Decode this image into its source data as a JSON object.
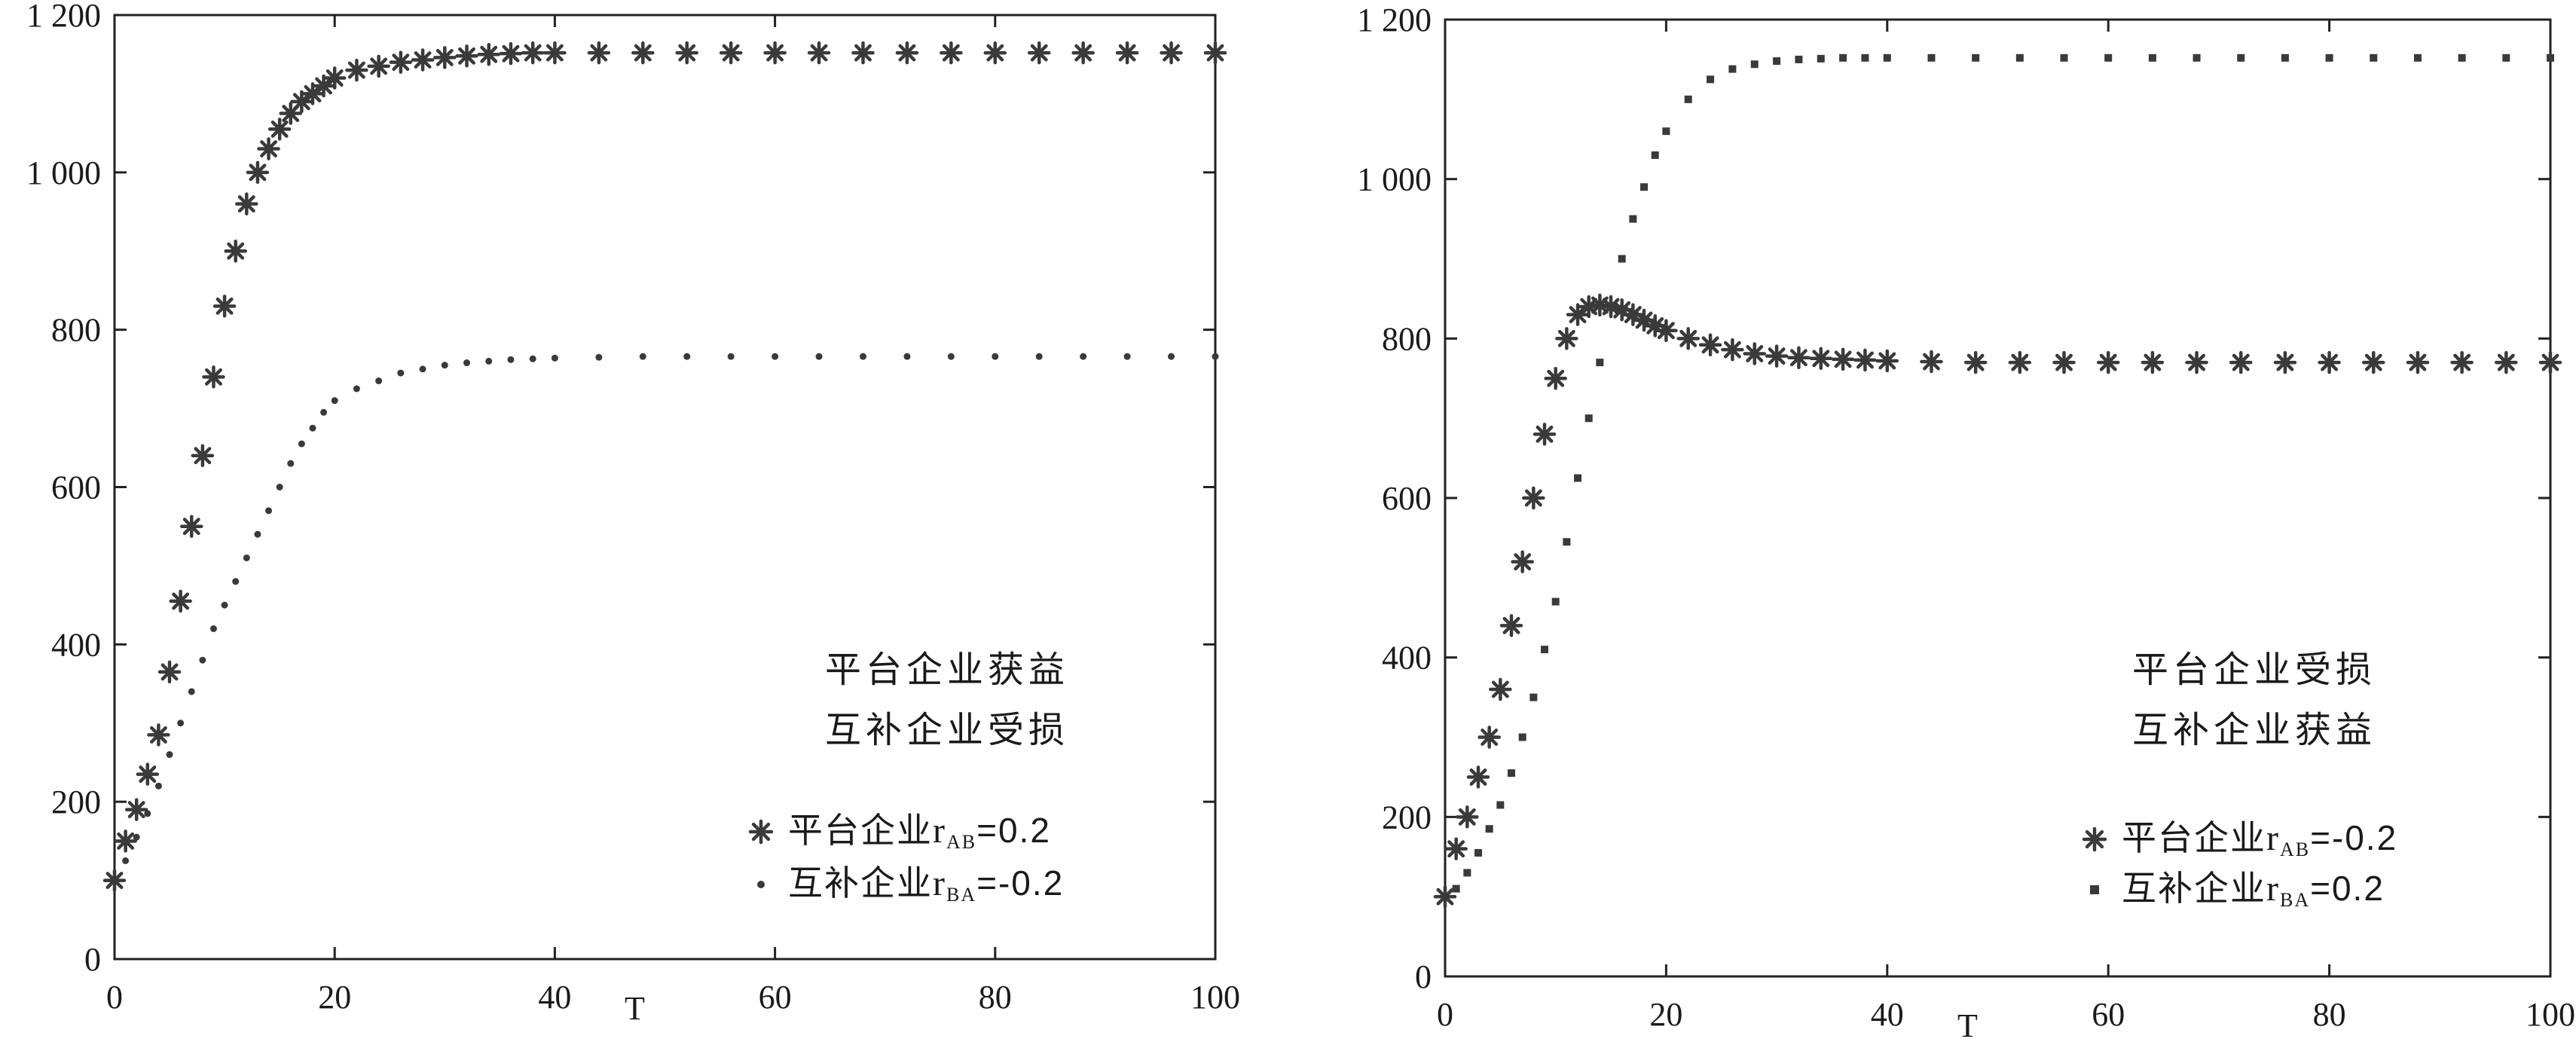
{
  "chart_data": [
    {
      "type": "scatter",
      "xlabel": "T",
      "ylabel": "",
      "xlim": [
        0,
        100
      ],
      "ylim": [
        0,
        1200
      ],
      "xticks": [
        "0",
        "20",
        "40",
        "60",
        "80",
        "100"
      ],
      "yticks": [
        "0",
        "200",
        "400",
        "600",
        "800",
        "1 000",
        "1 200"
      ],
      "grid": false,
      "annotation_lines": [
        "平台企业获益",
        "互补企业受损"
      ],
      "legend_position": "lower-right",
      "series": [
        {
          "name": "平台企业r_AB=0.2",
          "legend_prefix": "平台企业",
          "legend_r": "r",
          "legend_sub": "AB",
          "legend_value": "=0.2",
          "marker": "asterisk",
          "color": "#3a3a3a",
          "x": [
            0,
            1,
            2,
            3,
            4,
            5,
            6,
            7,
            8,
            9,
            10,
            11,
            12,
            13,
            14,
            15,
            16,
            17,
            18,
            19,
            20,
            22,
            24,
            26,
            28,
            30,
            32,
            34,
            36,
            38,
            40,
            44,
            48,
            52,
            56,
            60,
            64,
            68,
            72,
            76,
            80,
            84,
            88,
            92,
            96,
            100
          ],
          "y": [
            100,
            150,
            190,
            235,
            285,
            365,
            455,
            550,
            640,
            740,
            830,
            900,
            960,
            1000,
            1030,
            1055,
            1075,
            1090,
            1100,
            1110,
            1120,
            1130,
            1135,
            1140,
            1143,
            1146,
            1148,
            1150,
            1151,
            1152,
            1152,
            1152,
            1152,
            1152,
            1152,
            1152,
            1152,
            1152,
            1152,
            1152,
            1152,
            1152,
            1152,
            1152,
            1152,
            1152
          ]
        },
        {
          "name": "互补企业r_BA=-0.2",
          "legend_prefix": "互补企业",
          "legend_r": "r",
          "legend_sub": "BA",
          "legend_value": "=-0.2",
          "marker": "dot",
          "color": "#3a3a3a",
          "x": [
            0,
            1,
            2,
            3,
            4,
            5,
            6,
            7,
            8,
            9,
            10,
            11,
            12,
            13,
            14,
            15,
            16,
            17,
            18,
            19,
            20,
            22,
            24,
            26,
            28,
            30,
            32,
            34,
            36,
            38,
            40,
            44,
            48,
            52,
            56,
            60,
            64,
            68,
            72,
            76,
            80,
            84,
            88,
            92,
            96,
            100
          ],
          "y": [
            100,
            125,
            155,
            185,
            220,
            260,
            300,
            340,
            380,
            420,
            450,
            480,
            510,
            540,
            570,
            600,
            630,
            655,
            675,
            695,
            710,
            725,
            735,
            745,
            750,
            755,
            758,
            760,
            762,
            763,
            764,
            765,
            766,
            766,
            766,
            766,
            766,
            766,
            766,
            766,
            766,
            766,
            766,
            766,
            766,
            766
          ]
        }
      ]
    },
    {
      "type": "scatter",
      "xlabel": "T",
      "ylabel": "",
      "xlim": [
        0,
        100
      ],
      "ylim": [
        0,
        1200
      ],
      "xticks": [
        "0",
        "20",
        "40",
        "60",
        "80",
        "100"
      ],
      "yticks": [
        "0",
        "200",
        "400",
        "600",
        "800",
        "1 000",
        "1 200"
      ],
      "grid": false,
      "annotation_lines": [
        "平台企业受损",
        "互补企业获益"
      ],
      "legend_position": "lower-right",
      "series": [
        {
          "name": "平台企业r_AB=-0.2",
          "legend_prefix": "平台企业",
          "legend_r": "r",
          "legend_sub": "AB",
          "legend_value": "=-0.2",
          "marker": "asterisk",
          "color": "#3a3a3a",
          "x": [
            0,
            1,
            2,
            3,
            4,
            5,
            6,
            7,
            8,
            9,
            10,
            11,
            12,
            13,
            14,
            15,
            16,
            17,
            18,
            19,
            20,
            22,
            24,
            26,
            28,
            30,
            32,
            34,
            36,
            38,
            40,
            44,
            48,
            52,
            56,
            60,
            64,
            68,
            72,
            76,
            80,
            84,
            88,
            92,
            96,
            100
          ],
          "y": [
            100,
            160,
            200,
            250,
            300,
            360,
            440,
            520,
            600,
            680,
            750,
            800,
            830,
            840,
            842,
            840,
            836,
            830,
            823,
            816,
            810,
            800,
            792,
            786,
            781,
            778,
            776,
            775,
            774,
            773,
            772,
            771,
            770,
            770,
            770,
            770,
            770,
            770,
            770,
            770,
            770,
            770,
            770,
            770,
            770,
            770
          ]
        },
        {
          "name": "互补企业r_BA=0.2",
          "legend_prefix": "互补企业",
          "legend_r": "r",
          "legend_sub": "BA",
          "legend_value": "=0.2",
          "marker": "square",
          "color": "#3a3a3a",
          "x": [
            0,
            1,
            2,
            3,
            4,
            5,
            6,
            7,
            8,
            9,
            10,
            11,
            12,
            13,
            14,
            15,
            16,
            17,
            18,
            19,
            20,
            22,
            24,
            26,
            28,
            30,
            32,
            34,
            36,
            38,
            40,
            44,
            48,
            52,
            56,
            60,
            64,
            68,
            72,
            76,
            80,
            84,
            88,
            92,
            96,
            100
          ],
          "y": [
            100,
            110,
            130,
            155,
            185,
            215,
            255,
            300,
            350,
            410,
            470,
            545,
            625,
            700,
            770,
            840,
            900,
            950,
            990,
            1030,
            1060,
            1100,
            1125,
            1138,
            1144,
            1148,
            1150,
            1151,
            1152,
            1152,
            1152,
            1152,
            1152,
            1152,
            1152,
            1152,
            1152,
            1152,
            1152,
            1152,
            1152,
            1152,
            1152,
            1152,
            1152,
            1152
          ]
        }
      ]
    }
  ]
}
